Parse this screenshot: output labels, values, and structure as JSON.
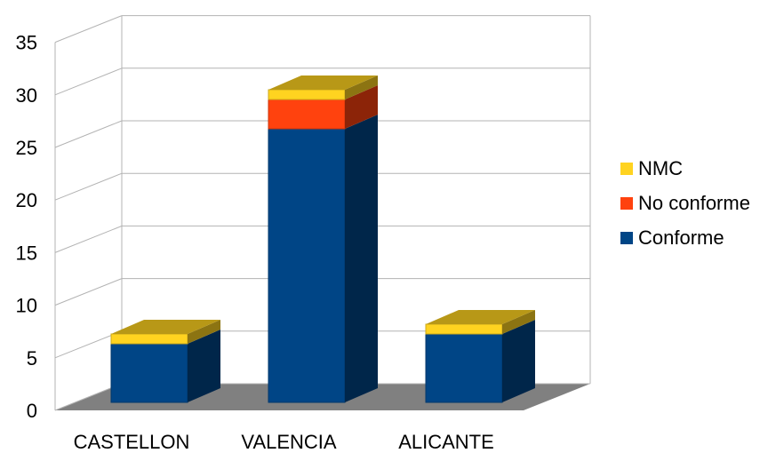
{
  "chart_data": {
    "type": "bar",
    "stacked": true,
    "three_d": true,
    "categories": [
      "CASTELLON",
      "VALENCIA",
      "ALICANTE"
    ],
    "series": [
      {
        "name": "Conforme",
        "color": "#004586",
        "values": [
          6,
          28,
          7
        ]
      },
      {
        "name": "No conforme",
        "color": "#ff420e",
        "values": [
          0,
          3,
          0
        ]
      },
      {
        "name": "NMC",
        "color": "#ffd320",
        "values": [
          1,
          1,
          1
        ]
      }
    ],
    "ylim": [
      0,
      35
    ],
    "yticks": [
      "0",
      "5",
      "10",
      "15",
      "20",
      "25",
      "30",
      "35"
    ],
    "grid": true,
    "legend_position": "right",
    "legend": [
      "NMC",
      "No conforme",
      "Conforme"
    ],
    "title": "",
    "xlabel": "",
    "ylabel": ""
  }
}
